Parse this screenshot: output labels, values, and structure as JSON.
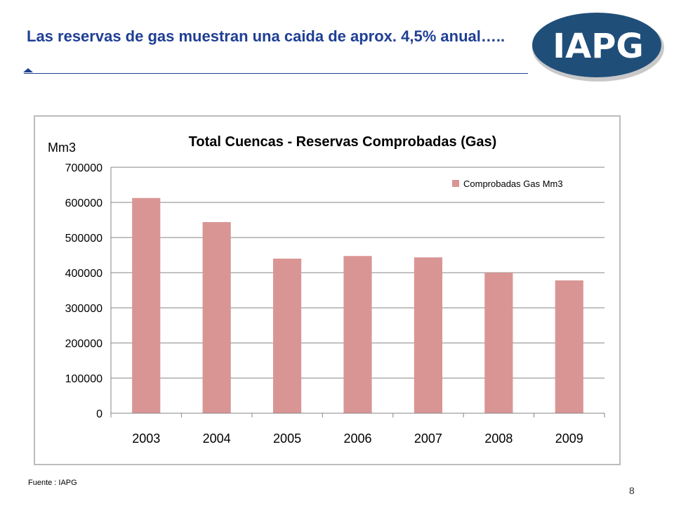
{
  "slide": {
    "title": "Las reservas de gas muestran una caida de aprox. 4,5% anual…..",
    "logo_text": "IAPG",
    "source": "Fuente :  IAPG",
    "page_number": "8"
  },
  "colors": {
    "title": "#1f3f95",
    "logo_fill": "#1f4e79",
    "bar": "#d99594",
    "grid": "#868686"
  },
  "chart_data": {
    "type": "bar",
    "title": "Total Cuencas - Reservas Comprobadas (Gas)",
    "ylabel": "Mm3",
    "xlabel": "",
    "categories": [
      "2003",
      "2004",
      "2005",
      "2006",
      "2007",
      "2008",
      "2009"
    ],
    "series": [
      {
        "name": "Comprobadas Gas Mm3",
        "values": [
          612500,
          544000,
          440000,
          447500,
          443500,
          400000,
          378000
        ]
      }
    ],
    "ylim": [
      0,
      700000
    ],
    "yticks": [
      "0",
      "100000",
      "200000",
      "300000",
      "400000",
      "500000",
      "600000",
      "700000"
    ],
    "grid": true,
    "legend_position": "top-right"
  }
}
